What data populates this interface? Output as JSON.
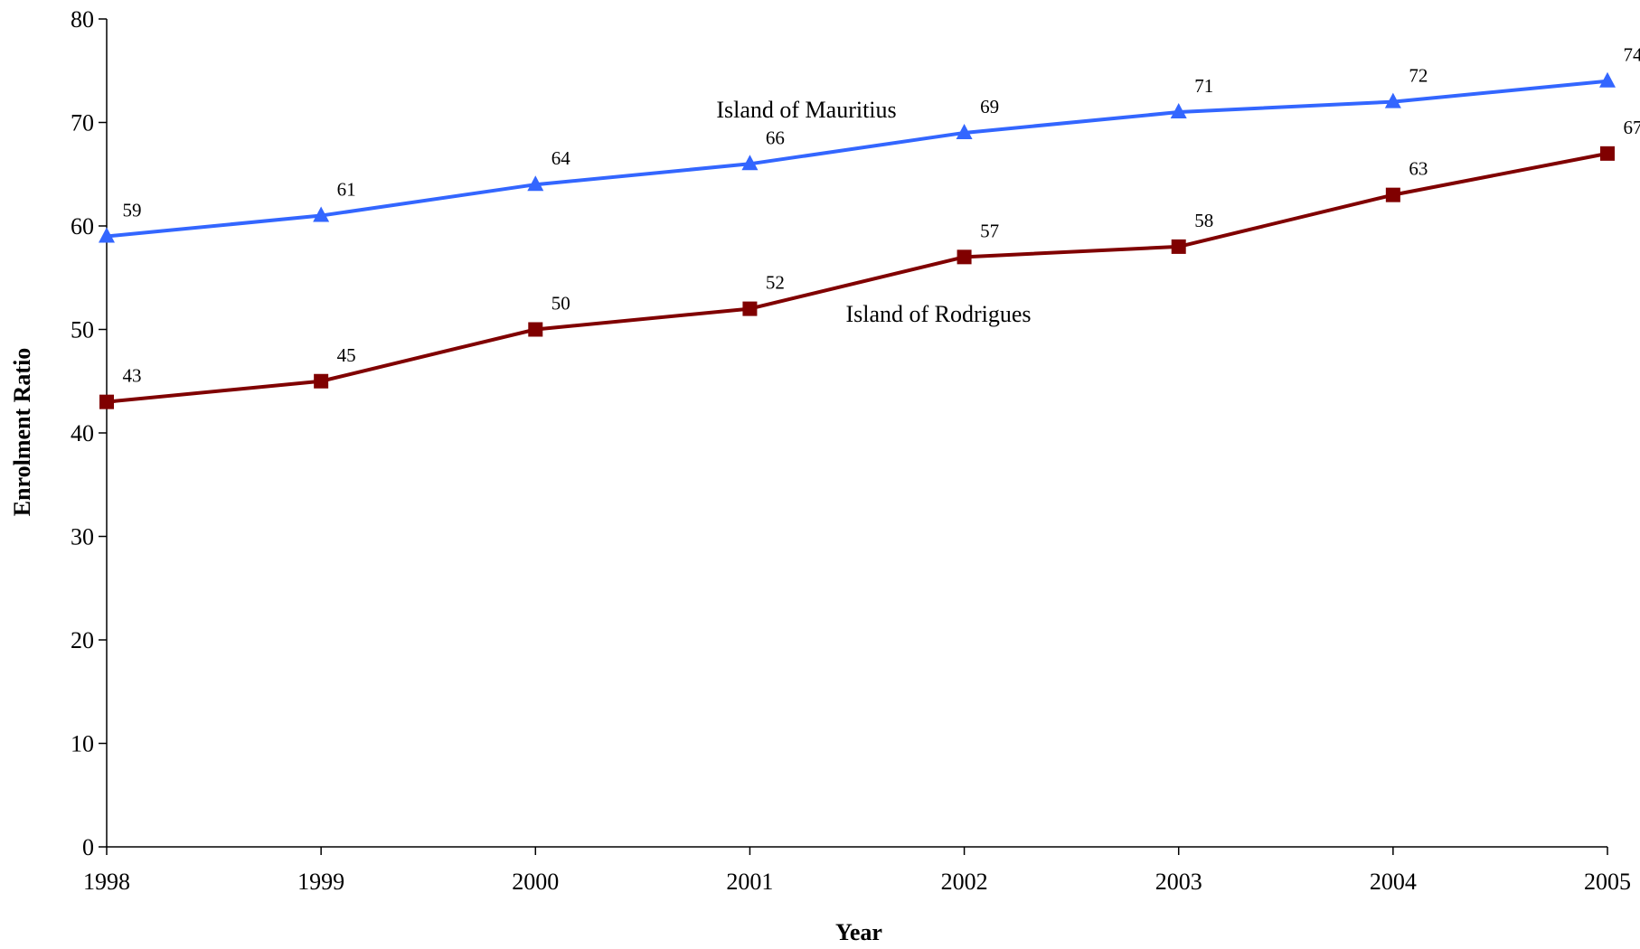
{
  "chart_data": {
    "type": "line",
    "xlabel": "Year",
    "ylabel": "Enrolment Ratio",
    "categories": [
      "1998",
      "1999",
      "2000",
      "2001",
      "2002",
      "2003",
      "2004",
      "2005"
    ],
    "ylim": [
      0,
      80
    ],
    "yticks": [
      0,
      10,
      20,
      30,
      40,
      50,
      60,
      70,
      80
    ],
    "grid": false,
    "legend": "none",
    "series": [
      {
        "name": "Island of Mauritius",
        "marker": "triangle",
        "color": "#3366ff",
        "values": [
          59,
          61,
          64,
          66,
          69,
          71,
          72,
          74
        ]
      },
      {
        "name": "Island of Rodrigues",
        "marker": "square",
        "color": "#800000",
        "values": [
          43,
          45,
          50,
          52,
          57,
          58,
          63,
          67
        ]
      }
    ]
  }
}
